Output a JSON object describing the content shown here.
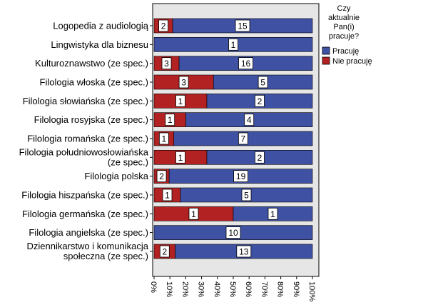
{
  "chart_data": {
    "type": "bar",
    "orientation": "horizontal",
    "stacked": true,
    "percent_stacked": true,
    "categories": [
      "Logopedia z audiologią",
      "Lingwistyka dla biznesu",
      "Kulturoznawstwo (ze spec.)",
      "Filologia włoska (ze spec.)",
      "Filologia słowiańska (ze spec.)",
      "Filologia rosyjska (ze spec.)",
      "Filologia romańska (ze spec.)",
      "Filologia południowosłowiańska (ze spec.)",
      "Filologia polska",
      "Filologia hiszpańska (ze spec.)",
      "Filologia germańska (ze spec.)",
      "Filologia angielska (ze spec.)",
      "Dziennikarstwo i komunikacja społeczna (ze spec.)"
    ],
    "series": [
      {
        "name": "Nie pracuję",
        "color": "#b22222",
        "values": [
          2,
          0,
          3,
          3,
          1,
          1,
          1,
          1,
          2,
          1,
          1,
          0,
          2
        ]
      },
      {
        "name": "Pracuję",
        "color": "#3f51a3",
        "values": [
          15,
          1,
          16,
          5,
          2,
          4,
          7,
          2,
          19,
          5,
          1,
          10,
          13
        ]
      }
    ],
    "xlim": [
      0,
      100
    ],
    "xticks": [
      "0%",
      "10%",
      "20%",
      "30%",
      "40%",
      "50%",
      "60%",
      "70%",
      "80%",
      "90%",
      "100%"
    ],
    "legend": {
      "title_lines": [
        "Czy",
        "aktualnie",
        "Pan(i)",
        "pracuje?"
      ],
      "position": "top-right"
    },
    "plot_background": "#e6e6e6"
  }
}
